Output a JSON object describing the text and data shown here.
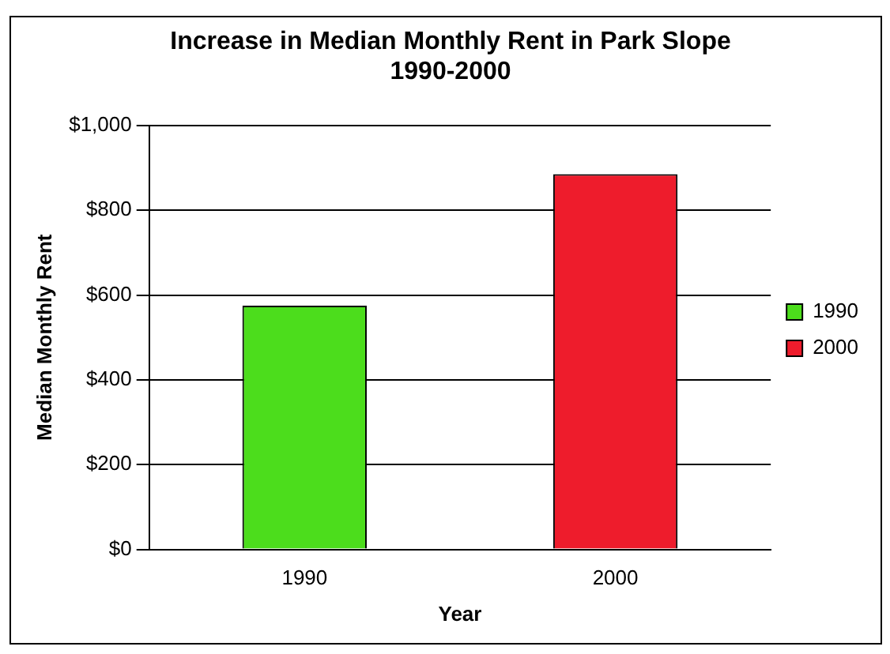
{
  "chart_data": {
    "type": "bar",
    "title": "Increase in Median Monthly Rent in Park Slope\n1990-2000",
    "xlabel": "Year",
    "ylabel": "Median Monthly Rent",
    "categories": [
      "1990",
      "2000"
    ],
    "series": [
      {
        "name": "1990",
        "color": "#4cdd1c",
        "values": [
          575,
          null
        ]
      },
      {
        "name": "2000",
        "color": "#ee1c2c",
        "values": [
          null,
          885
        ]
      }
    ],
    "ylim": [
      0,
      1000
    ],
    "yticks": [
      {
        "value": 0,
        "label": "$0"
      },
      {
        "value": 200,
        "label": "$200"
      },
      {
        "value": 400,
        "label": "$400"
      },
      {
        "value": 600,
        "label": "$600"
      },
      {
        "value": 800,
        "label": "$800"
      },
      {
        "value": 1000,
        "label": "$1,000"
      }
    ],
    "grid": "y",
    "legend": "right"
  }
}
